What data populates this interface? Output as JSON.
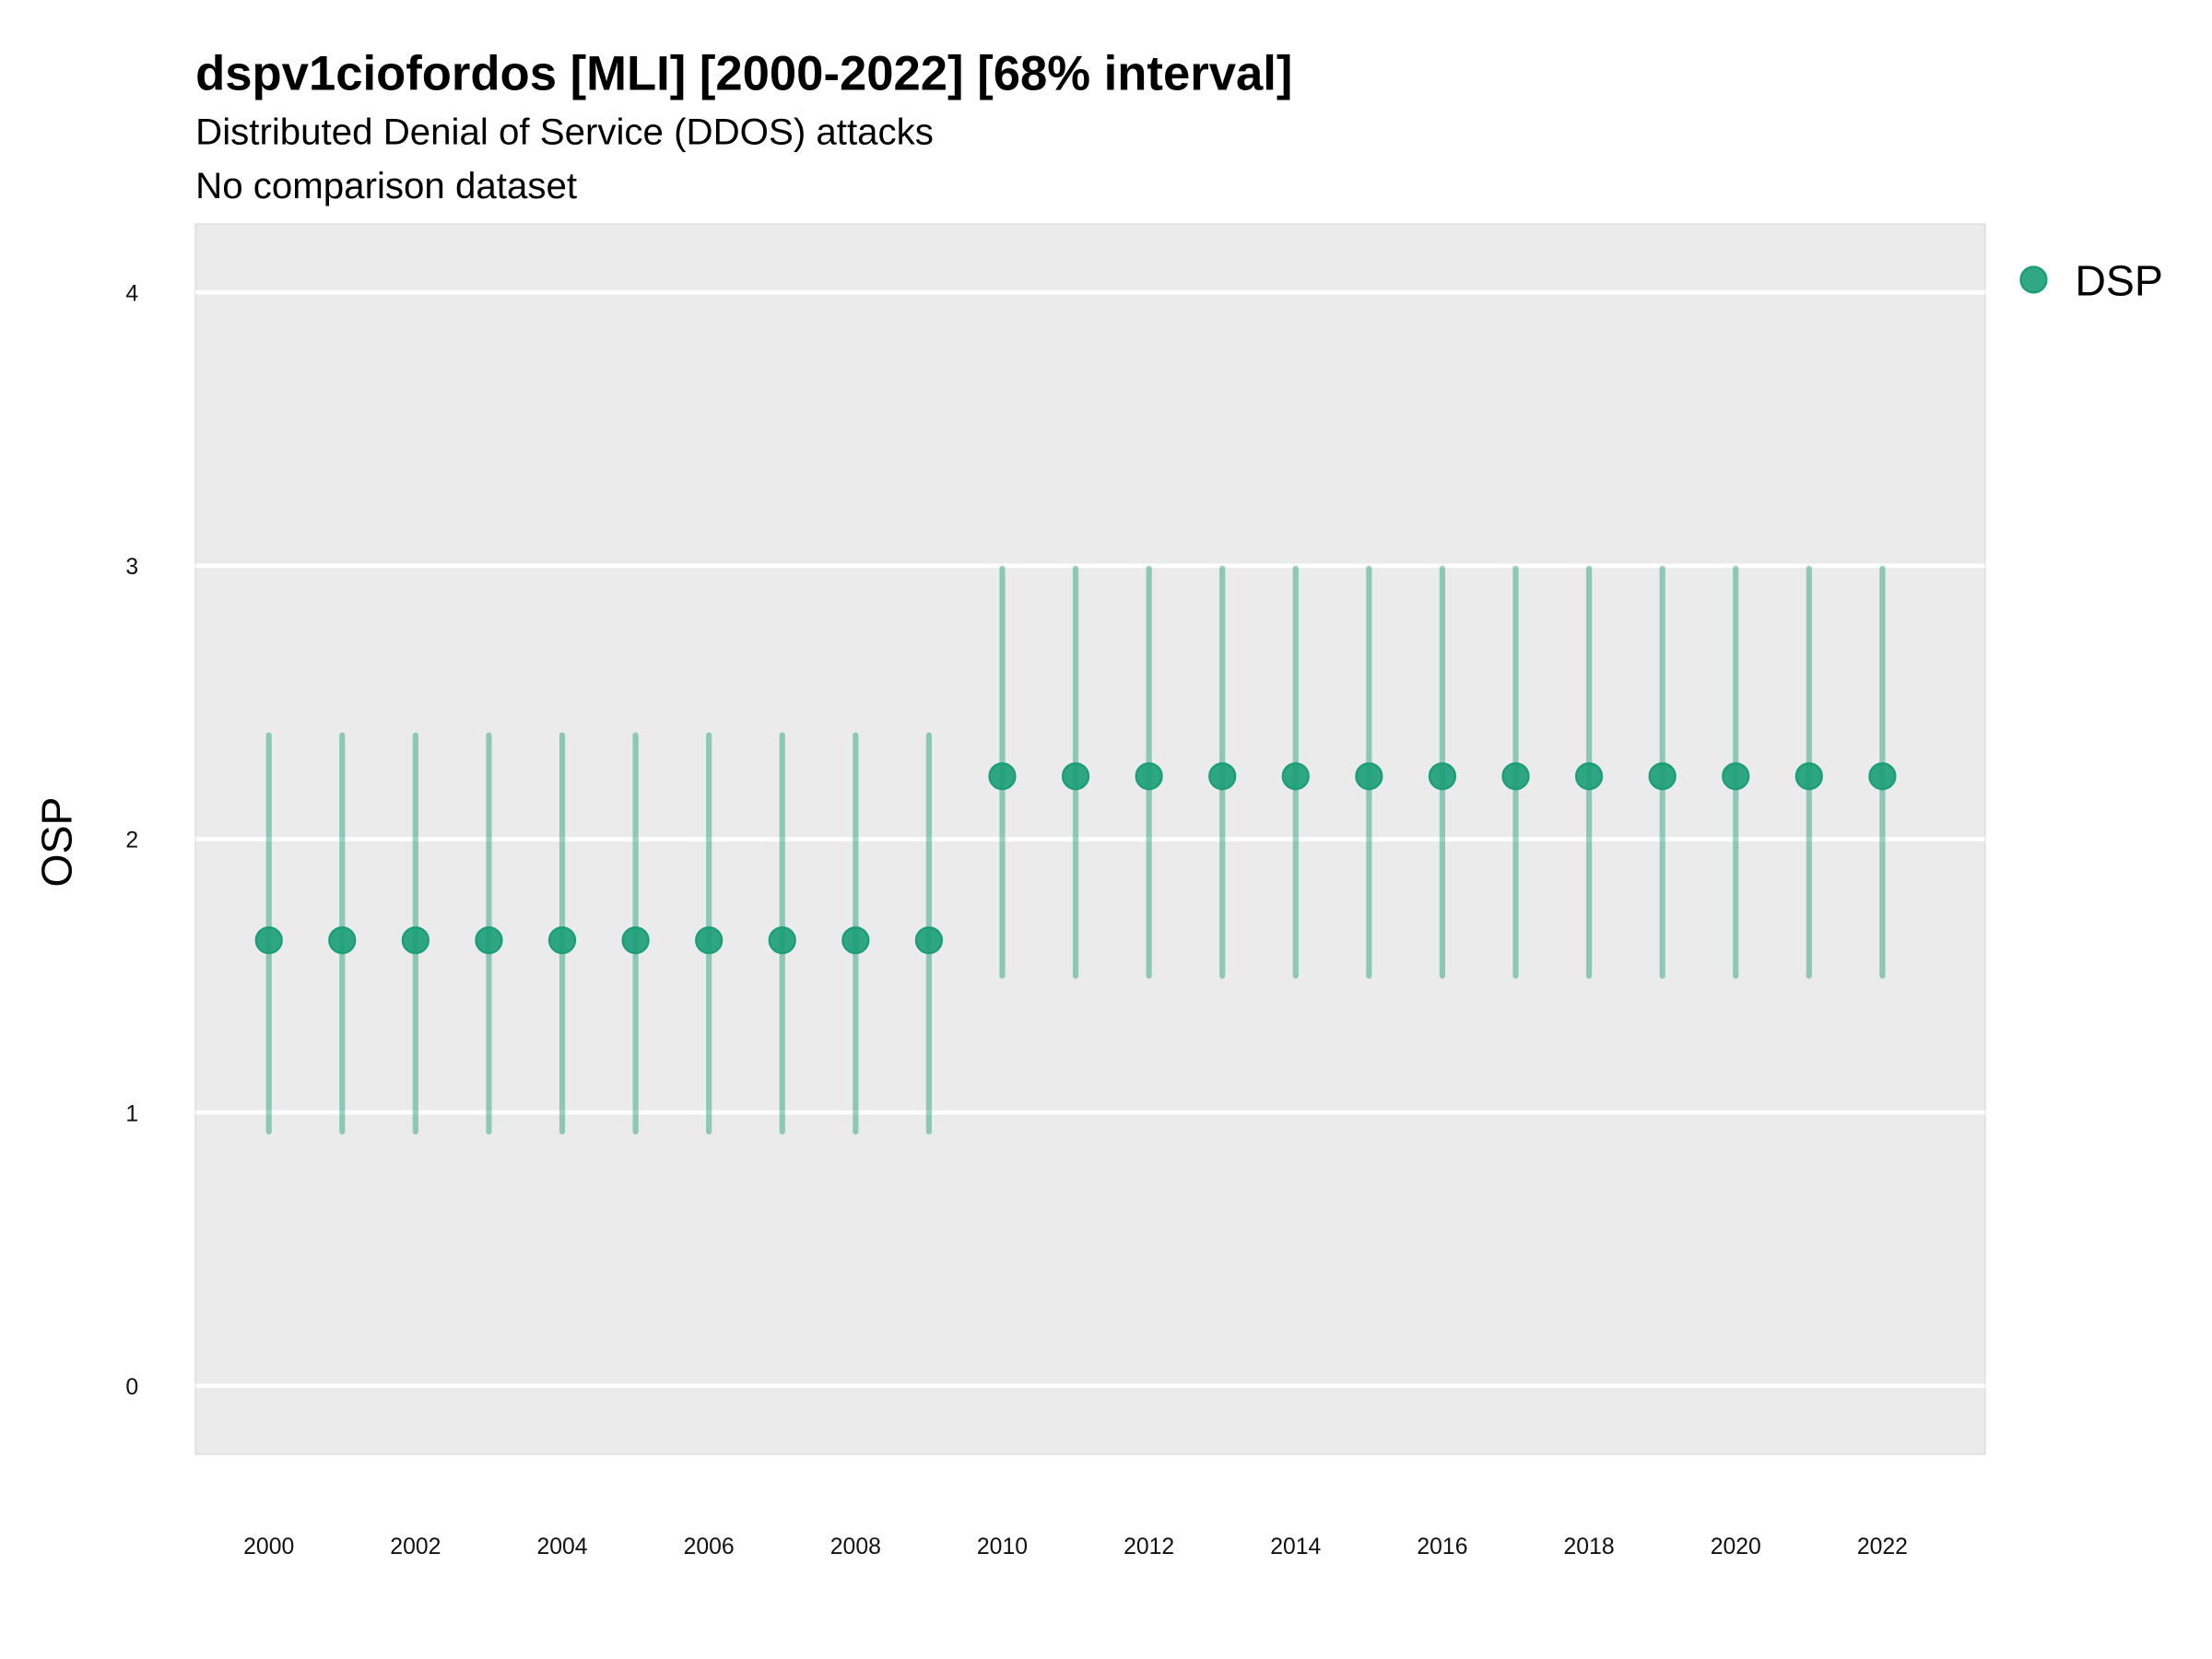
{
  "chart_data": {
    "type": "scatter",
    "title": "dspv1ciofordos [MLI] [2000-2022] [68% interval]",
    "subtitle": "Distributed Denial of Service (DDOS) attacks",
    "caption": "No comparison dataset",
    "xlabel": "",
    "ylabel": "OSP",
    "xlim": [
      1999,
      2023.4
    ],
    "ylim": [
      -0.25,
      4.25
    ],
    "grid": true,
    "legend_position": "right",
    "series": [
      {
        "name": "DSP",
        "color": "#1b9e77",
        "x": [
          2000,
          2001,
          2002,
          2003,
          2004,
          2005,
          2006,
          2007,
          2008,
          2009,
          2010,
          2011,
          2012,
          2013,
          2014,
          2015,
          2016,
          2017,
          2018,
          2019,
          2020,
          2021,
          2022
        ],
        "y": [
          1.63,
          1.63,
          1.63,
          1.63,
          1.63,
          1.63,
          1.63,
          1.63,
          1.63,
          1.63,
          2.23,
          2.23,
          2.23,
          2.23,
          2.23,
          2.23,
          2.23,
          2.23,
          2.23,
          2.23,
          2.23,
          2.23,
          2.23
        ],
        "lower": [
          0.93,
          0.93,
          0.93,
          0.93,
          0.93,
          0.93,
          0.93,
          0.93,
          0.93,
          0.93,
          1.5,
          1.5,
          1.5,
          1.5,
          1.5,
          1.5,
          1.5,
          1.5,
          1.5,
          1.5,
          1.5,
          1.5,
          1.5
        ],
        "upper": [
          2.38,
          2.38,
          2.38,
          2.38,
          2.38,
          2.38,
          2.38,
          2.38,
          2.38,
          2.38,
          2.99,
          2.99,
          2.99,
          2.99,
          2.99,
          2.99,
          2.99,
          2.99,
          2.99,
          2.99,
          2.99,
          2.99,
          2.99
        ]
      }
    ],
    "x_ticks": [
      "2000",
      "2002",
      "2004",
      "2006",
      "2008",
      "2010",
      "2012",
      "2014",
      "2016",
      "2018",
      "2020",
      "2022"
    ],
    "y_ticks": [
      "0",
      "1",
      "2",
      "3",
      "4"
    ]
  }
}
